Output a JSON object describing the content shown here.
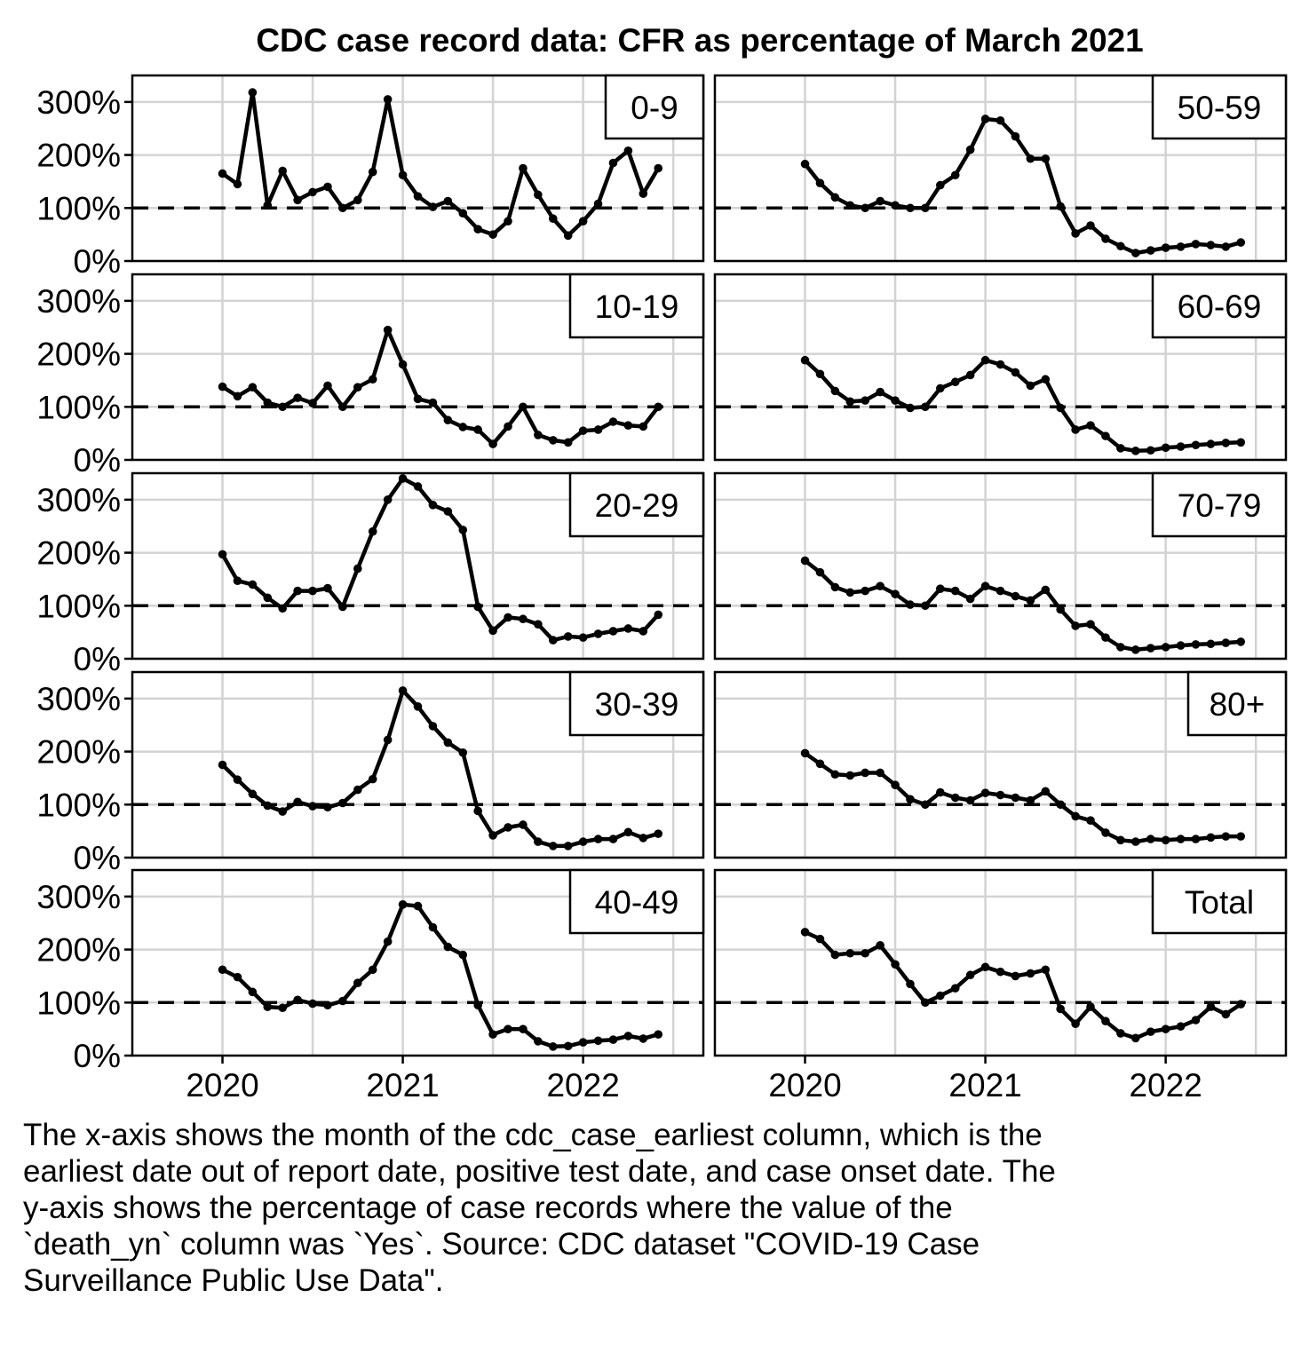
{
  "chart_data": {
    "type": "line",
    "title": "CDC case record data: CFR as percentage of March 2021",
    "xlabel": "",
    "ylabel": "",
    "x_unit": "month",
    "x_range": [
      "2019-07",
      "2022-09"
    ],
    "ylim": [
      0,
      350
    ],
    "y_ticks": [
      0,
      100,
      200,
      300
    ],
    "y_tick_labels": [
      "0%",
      "100%",
      "200%",
      "300%"
    ],
    "x_ticks": [
      "2020-01",
      "2021-01",
      "2022-01"
    ],
    "x_tick_labels": [
      "2020",
      "2021",
      "2022"
    ],
    "reference_line": 100,
    "grid": true,
    "x_start": "2020-01",
    "panels": [
      {
        "label": "0-9",
        "values": [
          165,
          145,
          318,
          105,
          170,
          115,
          130,
          140,
          100,
          115,
          168,
          305,
          162,
          122,
          102,
          113,
          90,
          60,
          50,
          75,
          175,
          125,
          80,
          48,
          75,
          108,
          185,
          208,
          127,
          175
        ]
      },
      {
        "label": "10-19",
        "values": [
          138,
          120,
          137,
          108,
          100,
          117,
          107,
          140,
          100,
          137,
          152,
          245,
          180,
          115,
          108,
          75,
          62,
          57,
          30,
          63,
          100,
          47,
          37,
          33,
          55,
          57,
          72,
          65,
          63,
          100
        ]
      },
      {
        "label": "20-29",
        "values": [
          197,
          147,
          140,
          115,
          95,
          128,
          128,
          133,
          98,
          170,
          240,
          300,
          340,
          325,
          290,
          278,
          243,
          98,
          53,
          78,
          75,
          65,
          35,
          42,
          40,
          47,
          52,
          57,
          52,
          83
        ]
      },
      {
        "label": "30-39",
        "values": [
          175,
          147,
          120,
          98,
          87,
          105,
          97,
          95,
          103,
          128,
          148,
          222,
          315,
          285,
          248,
          217,
          198,
          88,
          42,
          57,
          62,
          30,
          22,
          22,
          30,
          35,
          35,
          48,
          37,
          45
        ]
      },
      {
        "label": "40-49",
        "values": [
          162,
          148,
          120,
          92,
          90,
          105,
          98,
          95,
          103,
          137,
          162,
          215,
          285,
          282,
          242,
          205,
          190,
          95,
          40,
          50,
          50,
          27,
          17,
          18,
          25,
          28,
          30,
          37,
          32,
          40
        ]
      },
      {
        "label": "50-59",
        "values": [
          183,
          147,
          120,
          105,
          100,
          113,
          105,
          100,
          100,
          143,
          162,
          210,
          268,
          265,
          235,
          193,
          193,
          103,
          52,
          67,
          42,
          28,
          15,
          20,
          25,
          27,
          32,
          30,
          27,
          35
        ]
      },
      {
        "label": "60-69",
        "values": [
          188,
          162,
          130,
          110,
          112,
          128,
          112,
          98,
          100,
          135,
          147,
          160,
          188,
          180,
          165,
          140,
          152,
          98,
          57,
          65,
          45,
          22,
          17,
          18,
          23,
          25,
          28,
          30,
          32,
          33
        ]
      },
      {
        "label": "70-79",
        "values": [
          185,
          163,
          135,
          125,
          128,
          137,
          122,
          102,
          100,
          132,
          128,
          113,
          137,
          128,
          118,
          110,
          130,
          93,
          62,
          65,
          40,
          22,
          17,
          20,
          22,
          25,
          27,
          28,
          30,
          32
        ]
      },
      {
        "label": "80+",
        "values": [
          197,
          177,
          157,
          155,
          160,
          160,
          137,
          110,
          100,
          123,
          113,
          108,
          122,
          118,
          113,
          108,
          125,
          100,
          78,
          70,
          47,
          33,
          30,
          35,
          33,
          35,
          35,
          38,
          40,
          40
        ]
      },
      {
        "label": "Total",
        "values": [
          233,
          220,
          190,
          193,
          193,
          208,
          172,
          135,
          100,
          113,
          127,
          152,
          167,
          158,
          150,
          155,
          162,
          88,
          60,
          92,
          65,
          42,
          33,
          45,
          50,
          55,
          67,
          92,
          78,
          97
        ]
      }
    ]
  },
  "caption_lines": [
    "The x-axis shows the month of the cdc_case_earliest column, which is the",
    "earliest date out of report date, positive test date, and case onset date. The",
    "y-axis shows the percentage of case records where the value of the",
    "`death_yn` column was `Yes`. Source: CDC dataset \"COVID-19 Case",
    "Surveillance Public Use Data\"."
  ]
}
